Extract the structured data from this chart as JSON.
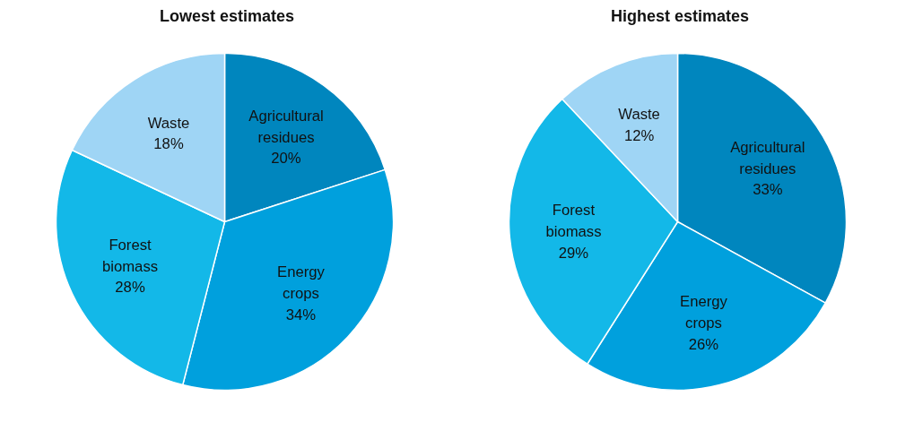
{
  "chart_data": [
    {
      "type": "pie",
      "title": "Lowest estimates",
      "categories": [
        "Agricultural residues",
        "Energy crops",
        "Forest biomass",
        "Waste"
      ],
      "values": [
        20,
        34,
        28,
        18
      ],
      "colors": [
        "#0086be",
        "#00a0dd",
        "#13b8e8",
        "#9fd5f5"
      ],
      "value_labels": [
        "20%",
        "34%",
        "28%",
        "18%"
      ],
      "legend": false
    },
    {
      "type": "pie",
      "title": "Highest estimates",
      "categories": [
        "Agricultural residues",
        "Energy crops",
        "Forest biomass",
        "Waste"
      ],
      "values": [
        33,
        26,
        29,
        12
      ],
      "colors": [
        "#0086be",
        "#00a0dd",
        "#13b8e8",
        "#9fd5f5"
      ],
      "value_labels": [
        "33%",
        "26%",
        "29%",
        "12%"
      ],
      "legend": false
    }
  ]
}
